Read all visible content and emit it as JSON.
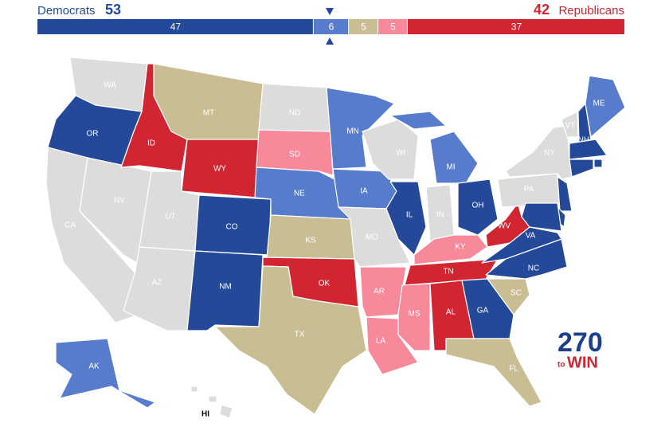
{
  "header": {
    "dem_label": "Democrats",
    "dem_total": 53,
    "rep_total": 42,
    "rep_label": "Republicans"
  },
  "bar": [
    {
      "value": 47,
      "color": "#244999"
    },
    {
      "value": 6,
      "color": "#577ccc"
    },
    {
      "value": 5,
      "color": "#c9bd94"
    },
    {
      "value": 5,
      "color": "#f7899a"
    },
    {
      "value": 37,
      "color": "#d22532"
    }
  ],
  "states": [
    {
      "label": "WA",
      "color": "#dcdcdc"
    },
    {
      "label": "OR",
      "color": "#244999"
    },
    {
      "label": "CA",
      "color": "#dcdcdc"
    },
    {
      "label": "NV",
      "color": "#dcdcdc"
    },
    {
      "label": "ID",
      "color": "#d22532"
    },
    {
      "label": "MT",
      "color": "#c9bd94"
    },
    {
      "label": "WY",
      "color": "#d22532"
    },
    {
      "label": "UT",
      "color": "#dcdcdc"
    },
    {
      "label": "AZ",
      "color": "#dcdcdc"
    },
    {
      "label": "CO",
      "color": "#244999"
    },
    {
      "label": "NM",
      "color": "#244999"
    },
    {
      "label": "ND",
      "color": "#dcdcdc"
    },
    {
      "label": "SD",
      "color": "#f7899a"
    },
    {
      "label": "NE",
      "color": "#577ccc"
    },
    {
      "label": "KS",
      "color": "#c9bd94"
    },
    {
      "label": "OK",
      "color": "#d22532"
    },
    {
      "label": "TX",
      "color": "#c9bd94"
    },
    {
      "label": "MN",
      "color": "#577ccc"
    },
    {
      "label": "IA",
      "color": "#577ccc"
    },
    {
      "label": "MO",
      "color": "#dcdcdc"
    },
    {
      "label": "AR",
      "color": "#f7899a"
    },
    {
      "label": "LA",
      "color": "#f7899a"
    },
    {
      "label": "WI",
      "color": "#dcdcdc"
    },
    {
      "label": "IL",
      "color": "#244999"
    },
    {
      "label": "MI",
      "color": "#577ccc"
    },
    {
      "label": "IN",
      "color": "#dcdcdc"
    },
    {
      "label": "OH",
      "color": "#244999"
    },
    {
      "label": "KY",
      "color": "#f7899a"
    },
    {
      "label": "TN",
      "color": "#d22532"
    },
    {
      "label": "MS",
      "color": "#f7899a"
    },
    {
      "label": "AL",
      "color": "#d22532"
    },
    {
      "label": "GA",
      "color": "#244999"
    },
    {
      "label": "FL",
      "color": "#c9bd94"
    },
    {
      "label": "SC",
      "color": "#c9bd94"
    },
    {
      "label": "NC",
      "color": "#244999"
    },
    {
      "label": "VA",
      "color": "#244999"
    },
    {
      "label": "WV",
      "color": "#d22532"
    },
    {
      "label": "PA",
      "color": "#dcdcdc"
    },
    {
      "label": "NY",
      "color": "#dcdcdc"
    },
    {
      "label": "VT",
      "color": "#dcdcdc"
    },
    {
      "label": "NH",
      "color": "#244999"
    },
    {
      "label": "ME",
      "color": "#577ccc"
    },
    {
      "label": null,
      "color": "#244999"
    },
    {
      "label": null,
      "color": "#244999"
    },
    {
      "label": null,
      "color": "#244999"
    },
    {
      "label": null,
      "color": "#244999"
    },
    {
      "label": null,
      "color": "#244999"
    },
    {
      "label": null,
      "color": "#244999"
    },
    {
      "label": "AK",
      "color": "#577ccc"
    },
    {
      "label": "HI",
      "color": "#dcdcdc"
    }
  ],
  "logo": {
    "number": "270",
    "small": "to",
    "word": "WIN"
  }
}
